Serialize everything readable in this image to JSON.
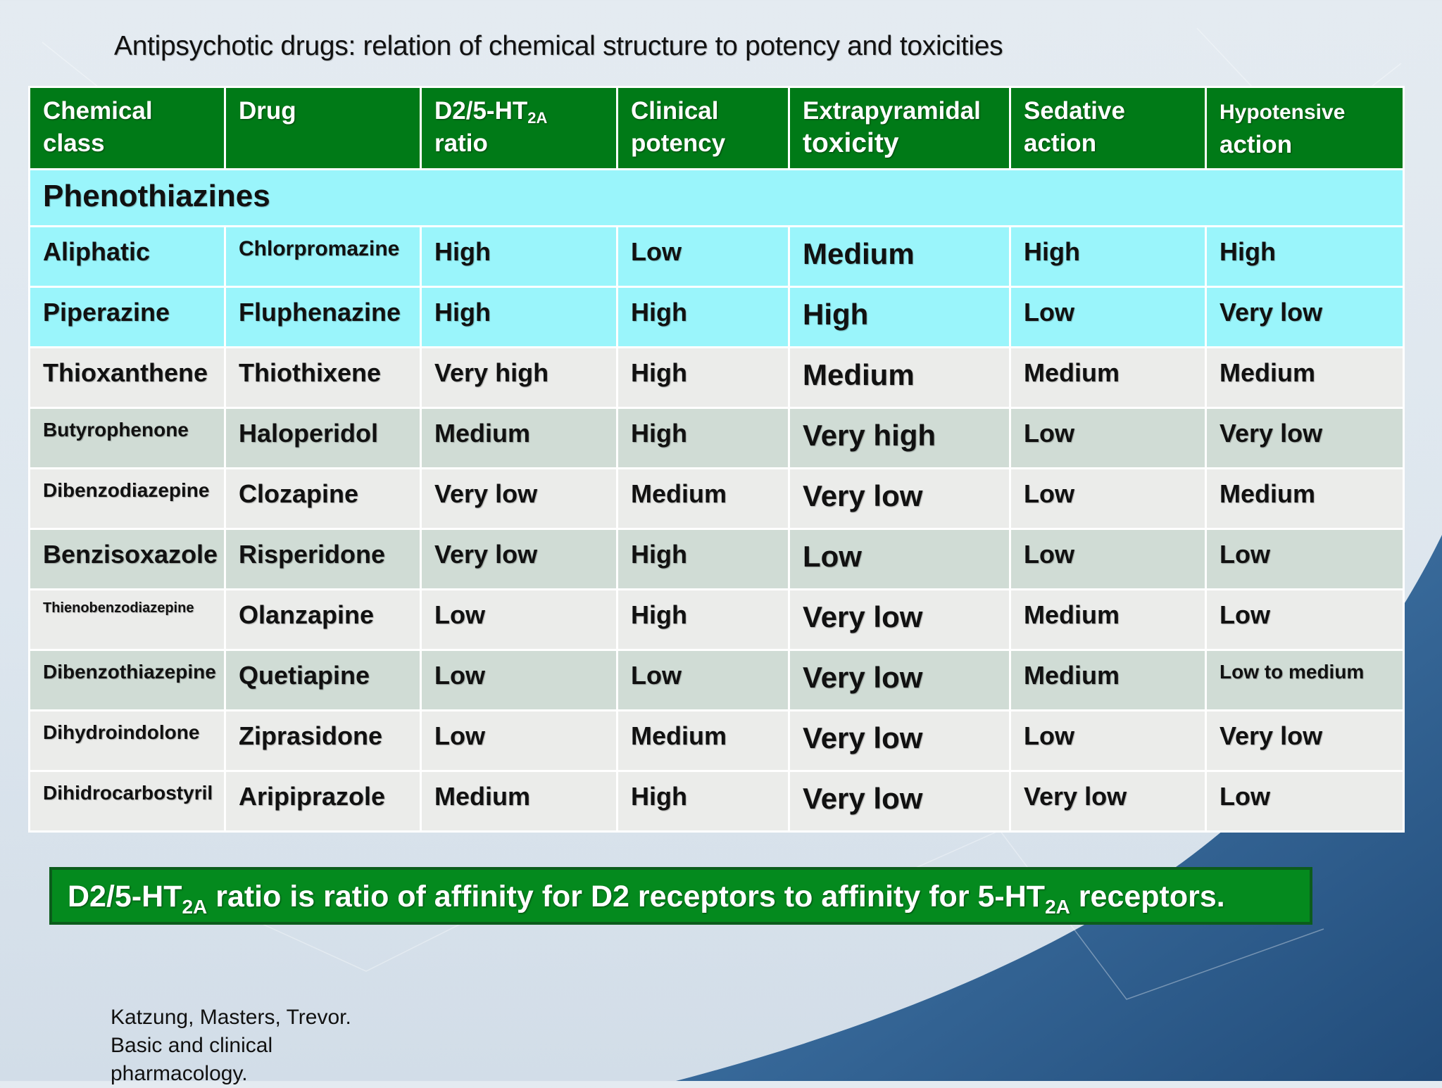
{
  "title": "Antipsychotic drugs: relation of chemical structure to potency and toxicities",
  "headers": {
    "chemical_class_l1": "Chemical",
    "chemical_class_l2": "class",
    "drug": "Drug",
    "ratio_pre": "D2/5-HT",
    "ratio_sub": "2A",
    "ratio_l2": "ratio",
    "potency_l1": "Clinical",
    "potency_l2": "potency",
    "eps_l1": "Extrapyramidal",
    "eps_l2": "toxicity",
    "sedative_l1": "Sedative",
    "sedative_l2": "action",
    "hypotensive_l1": "Hypotensive",
    "hypotensive_l2": "action"
  },
  "section": "Phenothiazines",
  "rows": [
    {
      "cls": "Aliphatic",
      "drug": "Chlorpromazine",
      "ratio": "High",
      "potency": "Low",
      "eps": "Medium",
      "sedative": "High",
      "hypotensive": "High"
    },
    {
      "cls": "Piperazine",
      "drug": "Fluphenazine",
      "ratio": "High",
      "potency": "High",
      "eps": "High",
      "sedative": "Low",
      "hypotensive": "Very low"
    },
    {
      "cls": "Thioxanthene",
      "drug": "Thiothixene",
      "ratio": "Very high",
      "potency": "High",
      "eps": "Medium",
      "sedative": "Medium",
      "hypotensive": "Medium"
    },
    {
      "cls": "Butyrophenone",
      "drug": "Haloperidol",
      "ratio": "Medium",
      "potency": "High",
      "eps": "Very high",
      "sedative": "Low",
      "hypotensive": "Very low"
    },
    {
      "cls": "Dibenzodiazepine",
      "drug": "Clozapine",
      "ratio": "Very low",
      "potency": "Medium",
      "eps": "Very low",
      "sedative": "Low",
      "hypotensive": "Medium"
    },
    {
      "cls": "Benzisoxazole",
      "drug": "Risperidone",
      "ratio": "Very low",
      "potency": "High",
      "eps": "Low",
      "sedative": "Low",
      "hypotensive": "Low"
    },
    {
      "cls": "Thienobenzodiazepine",
      "drug": "Olanzapine",
      "ratio": "Low",
      "potency": "High",
      "eps": "Very low",
      "sedative": "Medium",
      "hypotensive": "Low"
    },
    {
      "cls": "Dibenzothiazepine",
      "drug": "Quetiapine",
      "ratio": "Low",
      "potency": "Low",
      "eps": "Very low",
      "sedative": "Medium",
      "hypotensive": "Low to medium"
    },
    {
      "cls": "Dihydroindolone",
      "drug": "Ziprasidone",
      "ratio": "Low",
      "potency": "Medium",
      "eps": "Very low",
      "sedative": "Low",
      "hypotensive": "Very low"
    },
    {
      "cls": "Dihidrocarbostyril",
      "drug": "Aripiprazole",
      "ratio": "Medium",
      "potency": "High",
      "eps": "Very low",
      "sedative": "Very low",
      "hypotensive": "Low"
    }
  ],
  "note": {
    "p1": "D2/5-HT",
    "sub1": "2A",
    "p2": " ratio is ratio of affinity for D2 receptors to affinity for 5-HT",
    "sub2": "2A",
    "p3": " receptors."
  },
  "citation": {
    "l1": "Katzung, Masters, Trevor.",
    "l2": "Basic and clinical",
    "l3": "pharmacology."
  },
  "colors": {
    "header_green": "#007a17",
    "section_cyan": "#9af5fb",
    "row_light": "#ebecea",
    "row_grey": "#d0dcd5",
    "note_green": "#048a1e",
    "wave_blue": "#1d4f86"
  }
}
